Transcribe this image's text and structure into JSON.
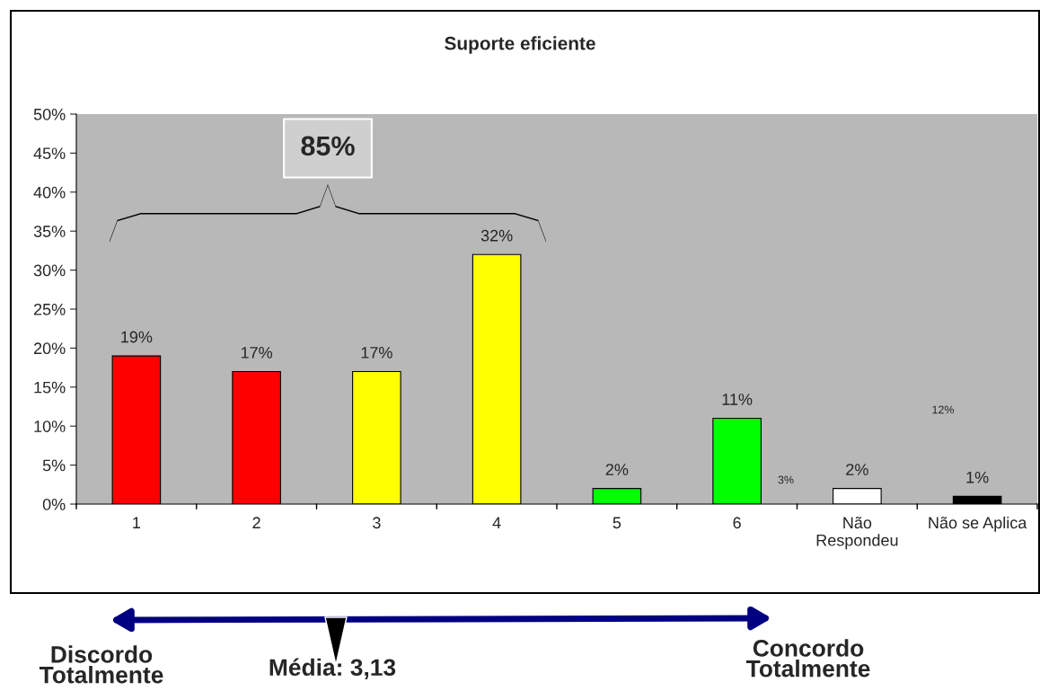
{
  "chart_data": {
    "type": "bar",
    "title": "Suporte eficiente",
    "categories": [
      "1",
      "2",
      "3",
      "4",
      "5",
      "6",
      "Não\nRespondeu",
      "Não se Aplica"
    ],
    "values": [
      19,
      17,
      17,
      32,
      2,
      11,
      2,
      1
    ],
    "colors": [
      "#ff0000",
      "#ff0000",
      "#ffff00",
      "#ffff00",
      "#00ff00",
      "#00ff00",
      "#ffffff",
      "#000000"
    ],
    "ylim": [
      0,
      50
    ],
    "yticks": [
      {
        "value": 0,
        "label": "0%"
      },
      {
        "value": 5,
        "label": "5%"
      },
      {
        "value": 10,
        "label": "10%"
      },
      {
        "value": 15,
        "label": "15%"
      },
      {
        "value": 20,
        "label": "20%"
      },
      {
        "value": 25,
        "label": "25%"
      },
      {
        "value": 30,
        "label": "30%"
      },
      {
        "value": 35,
        "label": "35%"
      },
      {
        "value": 40,
        "label": "40%"
      },
      {
        "value": 45,
        "label": "45%"
      },
      {
        "value": 50,
        "label": "50%"
      }
    ],
    "value_labels": [
      "19%",
      "17%",
      "17%",
      "32%",
      "2%",
      "11%",
      "2%",
      "1%"
    ],
    "annotations": [
      "85%",
      "3%",
      "12%",
      "Discordo\nTotalmente",
      "Média: 3,13",
      "Concordo\nTotalmente"
    ],
    "grid": false,
    "legend": false
  }
}
